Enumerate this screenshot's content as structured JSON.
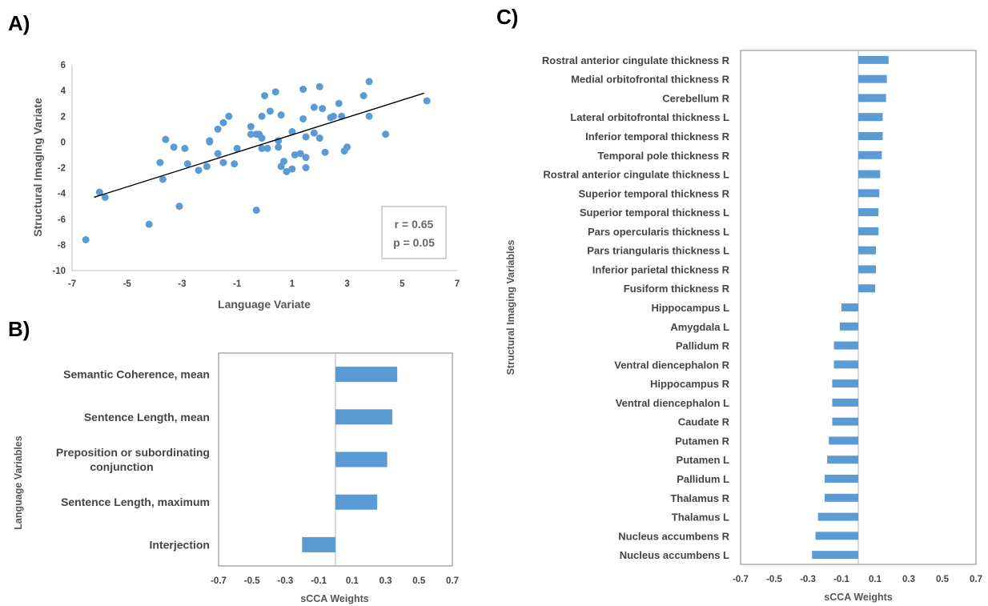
{
  "colors": {
    "marker": "#5b9bd5",
    "bar": "#5b9bd5",
    "axis": "#bfbfbf",
    "frame": "#7f7f7f",
    "trend": "#000000"
  },
  "chart_data": [
    {
      "panel": "A)",
      "type": "scatter",
      "xlabel": "Language Variate",
      "ylabel": "Structural Imaging Variate",
      "xlim": [
        -7,
        7
      ],
      "ylim": [
        -10,
        6
      ],
      "x_ticks": [
        "-7",
        "-5",
        "-3",
        "-1",
        "1",
        "3",
        "5",
        "7"
      ],
      "y_ticks": [
        "6",
        "4",
        "2",
        "0",
        "-2",
        "-4",
        "-6",
        "-8",
        "-10"
      ],
      "grid": false,
      "annotation": [
        "r = 0.65",
        "p = 0.05"
      ],
      "trendline": {
        "x": [
          -6.2,
          5.8
        ],
        "y": [
          -4.3,
          3.8
        ]
      },
      "points": [
        [
          -6.5,
          -7.6
        ],
        [
          -6.0,
          -3.9
        ],
        [
          -5.8,
          -4.3
        ],
        [
          -4.2,
          -6.4
        ],
        [
          -3.8,
          -1.6
        ],
        [
          -3.7,
          -2.9
        ],
        [
          -3.6,
          0.2
        ],
        [
          -3.3,
          -0.4
        ],
        [
          -3.1,
          -5.0
        ],
        [
          -2.9,
          -0.5
        ],
        [
          -2.8,
          -1.7
        ],
        [
          -2.4,
          -2.2
        ],
        [
          -2.1,
          -1.9
        ],
        [
          -2.0,
          0.1
        ],
        [
          -2.0,
          0.0
        ],
        [
          -1.7,
          1.0
        ],
        [
          -1.7,
          -0.9
        ],
        [
          -1.5,
          -1.6
        ],
        [
          -1.5,
          1.5
        ],
        [
          -1.3,
          2.0
        ],
        [
          -1.1,
          -1.7
        ],
        [
          -1.0,
          -0.5
        ],
        [
          -0.5,
          1.2
        ],
        [
          -0.5,
          0.6
        ],
        [
          -0.3,
          0.6
        ],
        [
          -0.3,
          -5.3
        ],
        [
          -0.2,
          0.6
        ],
        [
          -0.1,
          2.0
        ],
        [
          -0.1,
          0.3
        ],
        [
          -0.1,
          -0.5
        ],
        [
          0.0,
          3.6
        ],
        [
          0.1,
          -0.5
        ],
        [
          0.2,
          2.4
        ],
        [
          0.4,
          3.9
        ],
        [
          0.5,
          -0.4
        ],
        [
          0.5,
          0.1
        ],
        [
          0.6,
          -1.9
        ],
        [
          0.6,
          2.1
        ],
        [
          0.7,
          -1.5
        ],
        [
          0.8,
          -2.3
        ],
        [
          1.0,
          0.8
        ],
        [
          1.0,
          -2.1
        ],
        [
          1.1,
          -1.0
        ],
        [
          1.3,
          -0.9
        ],
        [
          1.4,
          4.1
        ],
        [
          1.4,
          1.8
        ],
        [
          1.5,
          0.4
        ],
        [
          1.5,
          -1.2
        ],
        [
          1.5,
          -2.0
        ],
        [
          1.8,
          2.7
        ],
        [
          1.8,
          0.7
        ],
        [
          2.0,
          4.3
        ],
        [
          2.0,
          0.3
        ],
        [
          2.1,
          2.6
        ],
        [
          2.2,
          -0.8
        ],
        [
          2.4,
          1.9
        ],
        [
          2.5,
          2.0
        ],
        [
          2.7,
          3.0
        ],
        [
          2.8,
          2.0
        ],
        [
          2.9,
          -0.7
        ],
        [
          3.0,
          -0.4
        ],
        [
          3.6,
          3.6
        ],
        [
          3.8,
          2.0
        ],
        [
          3.8,
          4.7
        ],
        [
          4.4,
          0.6
        ],
        [
          5.9,
          3.2
        ]
      ]
    },
    {
      "panel": "B)",
      "type": "bar",
      "orientation": "horizontal",
      "xlabel": "sCCA Weights",
      "ylabel": "Language Variables",
      "xlim": [
        -0.7,
        0.7
      ],
      "x_ticks": [
        "-0.7",
        "-0.5",
        "-0.3",
        "-0.1",
        "0.1",
        "0.3",
        "0.5",
        "0.7"
      ],
      "categories": [
        [
          "Semantic Coherence, mean"
        ],
        [
          "Sentence Length, mean"
        ],
        [
          "Preposition or subordinating",
          "conjunction"
        ],
        [
          "Sentence Length, maximum"
        ],
        [
          "Interjection"
        ]
      ],
      "values": [
        0.37,
        0.34,
        0.31,
        0.25,
        -0.2
      ]
    },
    {
      "panel": "C)",
      "type": "bar",
      "orientation": "horizontal",
      "xlabel": "sCCA Weights",
      "ylabel": "Structural Imaging Variables",
      "xlim": [
        -0.7,
        0.7
      ],
      "x_ticks": [
        "-0.7",
        "-0.5",
        "-0.3",
        "-0.1",
        "0.1",
        "0.3",
        "0.5",
        "0.7"
      ],
      "categories": [
        "Rostral anterior cingulate thickness R",
        "Medial orbitofrontal thickness R",
        "Cerebellum R",
        "Lateral orbitofrontal thickness L",
        "Inferior temporal thickness R",
        "Temporal pole thickness R",
        "Rostral anterior cingulate thickness L",
        "Superior temporal thickness R",
        "Superior temporal thickness L",
        "Pars opercularis thickness L",
        "Pars triangularis thickness L",
        "Inferior parietal thickness R",
        "Fusiform thickness R",
        "Hippocampus L",
        "Amygdala L",
        "Pallidum R",
        "Ventral diencephalon R",
        "Hippocampus R",
        "Ventral diencephalon L",
        "Caudate R",
        "Putamen R",
        "Putamen L",
        "Pallidum L",
        "Thalamus R",
        "Thalamus L",
        "Nucleus accumbens R",
        "Nucleus accumbens L"
      ],
      "values": [
        0.18,
        0.17,
        0.165,
        0.145,
        0.145,
        0.14,
        0.13,
        0.125,
        0.12,
        0.12,
        0.105,
        0.105,
        0.1,
        -0.1,
        -0.11,
        -0.145,
        -0.145,
        -0.155,
        -0.155,
        -0.155,
        -0.175,
        -0.185,
        -0.2,
        -0.2,
        -0.24,
        -0.255,
        -0.275
      ]
    }
  ]
}
